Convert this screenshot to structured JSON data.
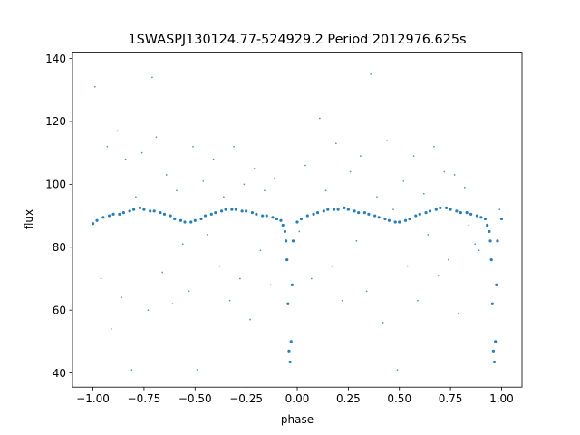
{
  "chart_data": {
    "type": "scatter",
    "title": "1SWASPJ130124.77-524929.2 Period 2012976.625s",
    "xlabel": "phase",
    "ylabel": "flux",
    "xlim": [
      -1.1,
      1.1
    ],
    "ylim": [
      35.5,
      142.0
    ],
    "x_ticks": [
      -1.0,
      -0.75,
      -0.5,
      -0.25,
      0.0,
      0.25,
      0.5,
      0.75,
      1.0
    ],
    "x_tick_labels": [
      "−1.00",
      "−0.75",
      "−0.50",
      "−0.25",
      "0.00",
      "0.25",
      "0.50",
      "0.75",
      "1.00"
    ],
    "y_ticks": [
      40,
      60,
      80,
      100,
      120,
      140
    ],
    "y_tick_labels": [
      "40",
      "60",
      "80",
      "100",
      "120",
      "140"
    ],
    "grid": false,
    "legend": "none",
    "marker_color": "#1f77b4",
    "series": [
      {
        "x": [
          -1.0,
          -0.98,
          -0.95,
          -0.92,
          -0.9,
          -0.87,
          -0.85,
          -0.82,
          -0.8,
          -0.77,
          -0.75,
          -0.72,
          -0.7,
          -0.67,
          -0.65,
          -0.62,
          -0.6,
          -0.57,
          -0.55,
          -0.52,
          -0.5,
          -0.47,
          -0.45,
          -0.42,
          -0.4,
          -0.37,
          -0.35,
          -0.32,
          -0.3,
          -0.27,
          -0.25,
          -0.22,
          -0.2,
          -0.17,
          -0.15,
          -0.12,
          -0.1,
          -0.08,
          -0.07,
          -0.06,
          -0.055,
          -0.05,
          -0.045,
          -0.04,
          -0.035,
          -0.03,
          -0.025,
          -0.02,
          0.0,
          0.02,
          0.05,
          0.08,
          0.1,
          0.13,
          0.15,
          0.18,
          0.2,
          0.23,
          0.25,
          0.28,
          0.3,
          0.33,
          0.35,
          0.38,
          0.4,
          0.43,
          0.45,
          0.48,
          0.5,
          0.53,
          0.55,
          0.58,
          0.6,
          0.63,
          0.65,
          0.68,
          0.7,
          0.73,
          0.75,
          0.78,
          0.8,
          0.83,
          0.85,
          0.88,
          0.9,
          0.92,
          0.93,
          0.94,
          0.945,
          0.95,
          0.955,
          0.96,
          0.965,
          0.97,
          0.975,
          0.98,
          1.0
        ],
        "y": [
          87.5,
          88.5,
          89.5,
          90.0,
          90.5,
          90.5,
          91.0,
          91.5,
          92.0,
          92.5,
          92.0,
          91.5,
          91.5,
          91.0,
          90.5,
          90.0,
          89.0,
          88.5,
          88.0,
          88.0,
          88.5,
          89.0,
          90.0,
          90.5,
          91.0,
          91.5,
          92.0,
          92.0,
          92.0,
          91.5,
          91.5,
          91.0,
          90.5,
          90.0,
          90.0,
          89.5,
          89.0,
          88.5,
          87.0,
          85.0,
          82.0,
          76.0,
          62.0,
          47.0,
          43.5,
          50.0,
          68.0,
          82.0,
          88.0,
          89.0,
          90.0,
          90.5,
          91.0,
          91.5,
          92.0,
          92.0,
          92.0,
          92.5,
          92.0,
          91.5,
          91.0,
          91.0,
          90.5,
          90.0,
          89.5,
          89.0,
          88.5,
          88.0,
          88.0,
          88.5,
          89.0,
          90.0,
          90.5,
          91.0,
          91.5,
          92.0,
          92.5,
          92.5,
          92.0,
          91.5,
          91.0,
          91.0,
          90.5,
          90.0,
          89.5,
          89.0,
          87.0,
          85.0,
          82.0,
          76.0,
          62.0,
          47.0,
          43.5,
          50.0,
          68.0,
          82.0,
          89.0
        ],
        "outliers_x": [
          -0.99,
          -0.96,
          -0.93,
          -0.91,
          -0.88,
          -0.86,
          -0.84,
          -0.81,
          -0.79,
          -0.76,
          -0.73,
          -0.71,
          -0.69,
          -0.66,
          -0.64,
          -0.61,
          -0.59,
          -0.56,
          -0.53,
          -0.51,
          -0.49,
          -0.46,
          -0.44,
          -0.41,
          -0.38,
          -0.36,
          -0.33,
          -0.31,
          -0.28,
          -0.26,
          -0.23,
          -0.21,
          -0.18,
          -0.16,
          -0.13,
          -0.11,
          0.01,
          0.04,
          0.07,
          0.11,
          0.14,
          0.17,
          0.19,
          0.22,
          0.26,
          0.29,
          0.31,
          0.34,
          0.36,
          0.39,
          0.42,
          0.44,
          0.47,
          0.49,
          0.52,
          0.54,
          0.57,
          0.59,
          0.62,
          0.64,
          0.67,
          0.69,
          0.72,
          0.74,
          0.77,
          0.79,
          0.82,
          0.84,
          0.87,
          0.89,
          0.99
        ],
        "outliers_y": [
          131.0,
          70.0,
          112.0,
          54.0,
          117.0,
          64.0,
          108.0,
          41.0,
          96.0,
          110.0,
          60.0,
          134.0,
          115.0,
          72.0,
          103.0,
          62.0,
          98.0,
          81.0,
          66.0,
          112.0,
          41.0,
          101.0,
          84.0,
          108.0,
          74.0,
          96.0,
          63.0,
          112.0,
          70.0,
          100.0,
          57.0,
          105.0,
          79.0,
          98.0,
          68.0,
          102.0,
          85.0,
          106.0,
          70.0,
          121.0,
          98.0,
          74.0,
          113.0,
          63.0,
          104.0,
          82.0,
          109.0,
          66.0,
          135.0,
          96.0,
          56.0,
          114.0,
          92.0,
          41.0,
          101.0,
          74.0,
          109.0,
          63.0,
          97.0,
          84.0,
          112.0,
          71.0,
          104.0,
          76.0,
          103.0,
          59.0,
          99.0,
          87.0,
          81.0,
          79.0,
          92.0
        ]
      }
    ]
  }
}
